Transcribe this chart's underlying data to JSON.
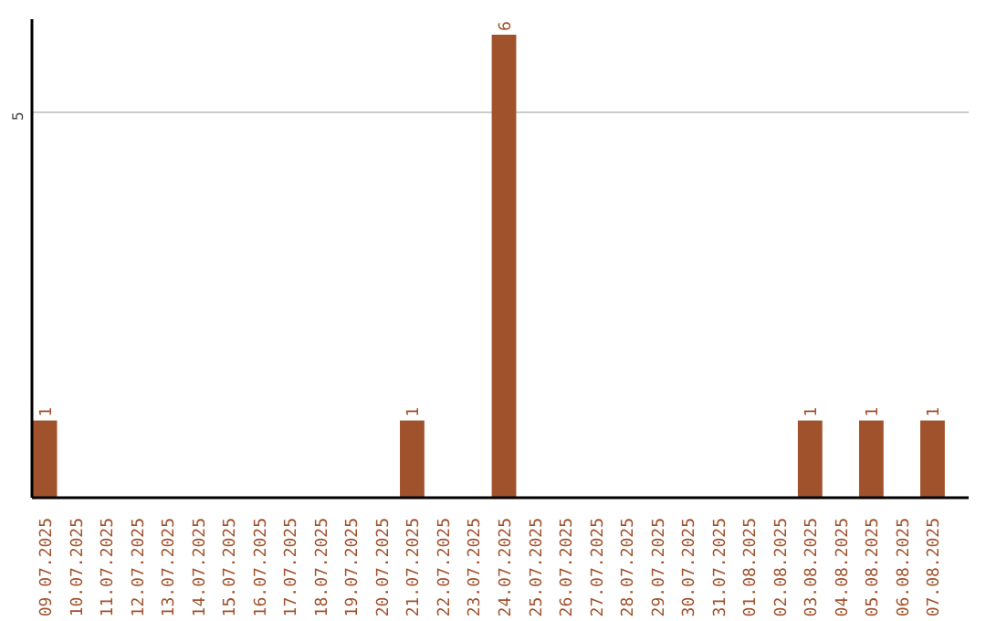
{
  "chart_data": {
    "type": "bar",
    "categories": [
      "09.07.2025",
      "10.07.2025",
      "11.07.2025",
      "12.07.2025",
      "13.07.2025",
      "14.07.2025",
      "15.07.2025",
      "16.07.2025",
      "17.07.2025",
      "18.07.2025",
      "19.07.2025",
      "20.07.2025",
      "21.07.2025",
      "22.07.2025",
      "23.07.2025",
      "24.07.2025",
      "25.07.2025",
      "26.07.2025",
      "27.07.2025",
      "28.07.2025",
      "29.07.2025",
      "30.07.2025",
      "31.07.2025",
      "01.08.2025",
      "02.08.2025",
      "03.08.2025",
      "04.08.2025",
      "05.08.2025",
      "06.08.2025",
      "07.08.2025"
    ],
    "values": [
      1,
      0,
      0,
      0,
      0,
      0,
      0,
      0,
      0,
      0,
      0,
      0,
      1,
      0,
      0,
      6,
      0,
      0,
      0,
      0,
      0,
      0,
      0,
      0,
      0,
      1,
      0,
      1,
      0,
      1
    ],
    "color": "#a0522d",
    "ylim": [
      0,
      6.2
    ],
    "yticks": [
      5
    ],
    "value_labels": [
      "1",
      null,
      null,
      null,
      null,
      null,
      null,
      null,
      null,
      null,
      null,
      null,
      "1",
      null,
      null,
      "6",
      null,
      null,
      null,
      null,
      null,
      null,
      null,
      null,
      null,
      "1",
      null,
      "1",
      null,
      "1"
    ],
    "grid": "y"
  }
}
